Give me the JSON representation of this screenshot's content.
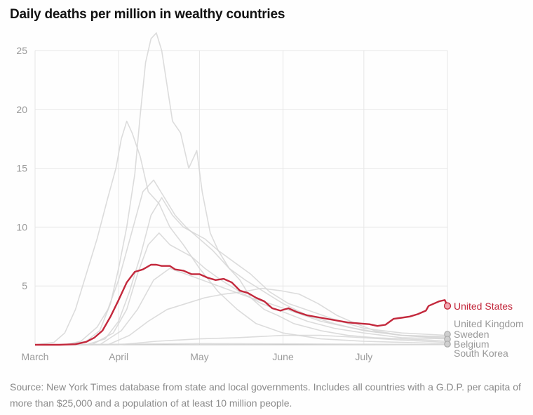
{
  "chart_data": {
    "type": "line",
    "title": "Daily deaths per million in wealthy countries",
    "xlabel": "",
    "ylabel": "",
    "x_ticks": [
      "March",
      "April",
      "May",
      "June",
      "July"
    ],
    "y_ticks": [
      5,
      10,
      15,
      20,
      25
    ],
    "ylim": [
      0,
      25
    ],
    "xlim": [
      "2020-03-01",
      "2020-08-01"
    ],
    "grid": true,
    "highlight": {
      "name": "United States",
      "color": "#c3283c",
      "x": [
        "2020-03-01",
        "2020-03-10",
        "2020-03-16",
        "2020-03-20",
        "2020-03-23",
        "2020-03-26",
        "2020-03-29",
        "2020-04-01",
        "2020-04-04",
        "2020-04-07",
        "2020-04-10",
        "2020-04-13",
        "2020-04-15",
        "2020-04-17",
        "2020-04-20",
        "2020-04-22",
        "2020-04-25",
        "2020-04-28",
        "2020-05-01",
        "2020-05-04",
        "2020-05-07",
        "2020-05-10",
        "2020-05-13",
        "2020-05-16",
        "2020-05-19",
        "2020-05-22",
        "2020-05-25",
        "2020-05-28",
        "2020-05-31",
        "2020-06-03",
        "2020-06-06",
        "2020-06-10",
        "2020-06-15",
        "2020-06-20",
        "2020-06-25",
        "2020-06-30",
        "2020-07-03",
        "2020-07-06",
        "2020-07-09",
        "2020-07-12",
        "2020-07-15",
        "2020-07-18",
        "2020-07-21",
        "2020-07-24",
        "2020-07-25",
        "2020-07-27",
        "2020-07-29",
        "2020-07-31",
        "2020-08-01"
      ],
      "y": [
        0,
        0,
        0.05,
        0.25,
        0.6,
        1.2,
        2.4,
        3.8,
        5.3,
        6.2,
        6.4,
        6.8,
        6.8,
        6.7,
        6.7,
        6.4,
        6.3,
        6.0,
        6.0,
        5.7,
        5.5,
        5.6,
        5.3,
        4.6,
        4.4,
        4.0,
        3.7,
        3.1,
        2.9,
        3.1,
        2.8,
        2.5,
        2.3,
        2.1,
        1.9,
        1.8,
        1.75,
        1.6,
        1.7,
        2.2,
        2.3,
        2.4,
        2.6,
        2.9,
        3.3,
        3.5,
        3.7,
        3.8,
        3.3
      ]
    },
    "end_labels": [
      "United States",
      "United Kingdom",
      "Sweden",
      "Belgium",
      "South Korea"
    ],
    "source": "Source: New York Times database from state and local governments. Includes all countries with a G.D.P. per capita of more than $25,000 and a population of at least 10 million people.",
    "background_series": [
      {
        "x": [
          "2020-03-01",
          "2020-03-13",
          "2020-03-20",
          "2020-03-25",
          "2020-03-29",
          "2020-04-01",
          "2020-04-04",
          "2020-04-07",
          "2020-04-09",
          "2020-04-11",
          "2020-04-13",
          "2020-04-15",
          "2020-04-17",
          "2020-04-19",
          "2020-04-21",
          "2020-04-24",
          "2020-04-27",
          "2020-04-30",
          "2020-05-02",
          "2020-05-05",
          "2020-05-08",
          "2020-05-12",
          "2020-05-16",
          "2020-05-20",
          "2020-05-25",
          "2020-05-30",
          "2020-06-05",
          "2020-06-15",
          "2020-06-25",
          "2020-07-05",
          "2020-07-15",
          "2020-07-25",
          "2020-08-01"
        ],
        "y": [
          0,
          0,
          0.3,
          1.2,
          3.5,
          6.5,
          10,
          14.5,
          19.5,
          24,
          26,
          26.5,
          25,
          22,
          19,
          18,
          15,
          16.5,
          13,
          9.5,
          8,
          6.5,
          5.5,
          4,
          3,
          2.5,
          1.8,
          1.2,
          0.8,
          0.6,
          0.5,
          0.4,
          0.3
        ]
      },
      {
        "x": [
          "2020-03-01",
          "2020-03-08",
          "2020-03-12",
          "2020-03-16",
          "2020-03-20",
          "2020-03-24",
          "2020-03-28",
          "2020-03-31",
          "2020-04-02",
          "2020-04-04",
          "2020-04-06",
          "2020-04-09",
          "2020-04-12",
          "2020-04-16",
          "2020-04-20",
          "2020-04-25",
          "2020-05-01",
          "2020-05-08",
          "2020-05-15",
          "2020-05-22",
          "2020-06-01",
          "2020-06-15",
          "2020-07-01",
          "2020-07-15",
          "2020-08-01"
        ],
        "y": [
          0,
          0.2,
          1.0,
          3.0,
          6.0,
          9.0,
          12.5,
          15.0,
          17.5,
          19.0,
          18.0,
          16.0,
          13.0,
          12.0,
          10.0,
          8.5,
          6.5,
          4.5,
          3.0,
          1.8,
          1.0,
          0.5,
          0.3,
          0.2,
          0.1
        ]
      },
      {
        "x": [
          "2020-03-01",
          "2020-03-12",
          "2020-03-18",
          "2020-03-24",
          "2020-03-28",
          "2020-04-01",
          "2020-04-04",
          "2020-04-07",
          "2020-04-10",
          "2020-04-14",
          "2020-04-18",
          "2020-04-22",
          "2020-04-26",
          "2020-05-01",
          "2020-05-06",
          "2020-05-12",
          "2020-05-18",
          "2020-05-25",
          "2020-06-01",
          "2020-06-10",
          "2020-06-20",
          "2020-07-01",
          "2020-07-15",
          "2020-08-01"
        ],
        "y": [
          0,
          0,
          0.3,
          1.5,
          3.0,
          5.5,
          8.0,
          10.5,
          13.0,
          14.0,
          12.5,
          11.0,
          10.0,
          9.0,
          8.0,
          6.5,
          5.5,
          4.5,
          3.5,
          2.5,
          1.8,
          1.2,
          0.8,
          0.6
        ]
      },
      {
        "x": [
          "2020-03-01",
          "2020-03-20",
          "2020-03-27",
          "2020-04-01",
          "2020-04-05",
          "2020-04-09",
          "2020-04-13",
          "2020-04-17",
          "2020-04-21",
          "2020-04-25",
          "2020-04-29",
          "2020-05-03",
          "2020-05-08",
          "2020-05-14",
          "2020-05-20",
          "2020-05-27",
          "2020-06-03",
          "2020-06-12",
          "2020-06-22",
          "2020-07-01",
          "2020-07-15",
          "2020-08-01"
        ],
        "y": [
          0,
          0,
          0.5,
          2.0,
          4.5,
          7.5,
          11.0,
          12.5,
          11.0,
          10.0,
          9.5,
          9.0,
          8.0,
          7.0,
          6.0,
          4.5,
          3.5,
          2.8,
          2.0,
          1.4,
          1.0,
          0.8
        ]
      },
      {
        "x": [
          "2020-03-01",
          "2020-03-22",
          "2020-03-30",
          "2020-04-04",
          "2020-04-08",
          "2020-04-12",
          "2020-04-16",
          "2020-04-20",
          "2020-04-24",
          "2020-04-28",
          "2020-05-03",
          "2020-05-09",
          "2020-05-16",
          "2020-05-24",
          "2020-06-01",
          "2020-06-10",
          "2020-06-20",
          "2020-07-01",
          "2020-07-15",
          "2020-08-01"
        ],
        "y": [
          0,
          0,
          1.0,
          3.0,
          6.0,
          8.5,
          9.5,
          8.5,
          8.0,
          7.5,
          6.5,
          5.5,
          4.5,
          3.5,
          2.8,
          2.0,
          1.4,
          1.0,
          0.6,
          0.5
        ]
      },
      {
        "x": [
          "2020-03-01",
          "2020-03-25",
          "2020-04-02",
          "2020-04-08",
          "2020-04-14",
          "2020-04-20",
          "2020-04-26",
          "2020-05-02",
          "2020-05-08",
          "2020-05-14",
          "2020-05-20",
          "2020-05-27",
          "2020-06-05",
          "2020-06-15",
          "2020-06-25",
          "2020-07-05",
          "2020-07-15",
          "2020-08-01"
        ],
        "y": [
          0,
          0,
          1.2,
          3.0,
          5.5,
          6.5,
          6.0,
          5.5,
          5.0,
          4.5,
          4.0,
          3.5,
          2.8,
          2.0,
          1.5,
          1.1,
          0.8,
          0.7
        ]
      },
      {
        "x": [
          "2020-03-01",
          "2020-03-28",
          "2020-04-05",
          "2020-04-12",
          "2020-04-19",
          "2020-04-26",
          "2020-05-03",
          "2020-05-10",
          "2020-05-17",
          "2020-05-24",
          "2020-05-31",
          "2020-06-07",
          "2020-06-14",
          "2020-06-21",
          "2020-06-28",
          "2020-07-05",
          "2020-07-15",
          "2020-08-01"
        ],
        "y": [
          0,
          0,
          0.8,
          2.0,
          3.0,
          3.5,
          4.0,
          4.3,
          4.5,
          4.8,
          4.6,
          4.3,
          3.5,
          2.5,
          1.8,
          1.2,
          0.8,
          0.5
        ]
      },
      {
        "x": [
          "2020-03-01",
          "2020-04-01",
          "2020-04-15",
          "2020-05-01",
          "2020-05-15",
          "2020-06-01",
          "2020-06-15",
          "2020-07-01",
          "2020-07-15",
          "2020-08-01"
        ],
        "y": [
          0,
          0,
          0.3,
          0.5,
          0.6,
          0.8,
          0.8,
          0.6,
          0.4,
          0.2
        ]
      },
      {
        "x": [
          "2020-03-01",
          "2020-04-01",
          "2020-05-01",
          "2020-06-01",
          "2020-07-01",
          "2020-08-01"
        ],
        "y": [
          0,
          0.05,
          0.1,
          0.08,
          0.05,
          0.02
        ]
      }
    ]
  }
}
